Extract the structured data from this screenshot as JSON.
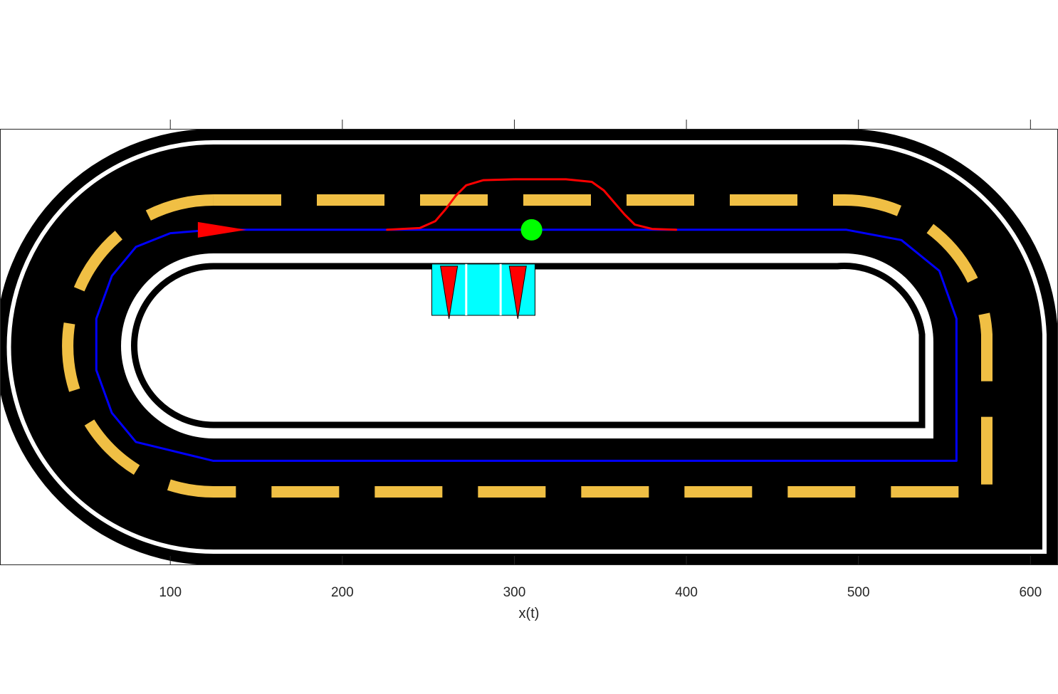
{
  "chart_data": {
    "type": "line",
    "title": "",
    "xlabel": "x(t)",
    "ylabel": "",
    "xlim": [
      1,
      616
    ],
    "ylim": [
      1,
      256
    ],
    "y_direction": "reverse",
    "grid": false,
    "xticks": [
      100,
      200,
      300,
      400,
      500,
      600
    ],
    "xtick_labels": [
      "100",
      "200",
      "300",
      "400",
      "500",
      "600"
    ],
    "background_image": "oval race track, black asphalt, white edge lines, yellow dashed centre line",
    "series": [
      {
        "role": "reference-path",
        "color": "#0000ff",
        "points": [
          [
            146,
            60
          ],
          [
            493,
            60
          ],
          [
            525,
            66
          ],
          [
            547,
            84
          ],
          [
            557,
            112
          ],
          [
            557,
            195
          ],
          [
            125,
            195
          ],
          [
            80,
            184
          ],
          [
            66,
            167
          ],
          [
            57,
            142
          ],
          [
            57,
            112
          ],
          [
            66,
            87
          ],
          [
            80,
            70
          ],
          [
            100,
            62
          ],
          [
            125,
            60
          ],
          [
            146,
            60
          ]
        ]
      },
      {
        "role": "lane-change-trajectory",
        "color": "#ff0000",
        "points": [
          [
            226,
            60
          ],
          [
            245,
            59
          ],
          [
            254,
            55
          ],
          [
            260,
            48
          ],
          [
            266,
            40
          ],
          [
            272,
            34
          ],
          [
            282,
            31
          ],
          [
            300,
            30.5
          ],
          [
            330,
            30.5
          ],
          [
            345,
            32
          ],
          [
            352,
            37
          ],
          [
            358,
            44
          ],
          [
            364,
            51
          ],
          [
            370,
            57
          ],
          [
            380,
            59.5
          ],
          [
            394,
            60
          ]
        ]
      }
    ],
    "markers": [
      {
        "role": "vehicle",
        "shape": "circle",
        "color": "#00ff00",
        "x": 310,
        "y": 60
      },
      {
        "role": "start-direction",
        "shape": "arrowhead",
        "color": "#ff0000",
        "x": 116,
        "y": 60,
        "direction": "right"
      }
    ],
    "obstacle": {
      "color": "#00ffff",
      "x_range": [
        252,
        312
      ],
      "y_range": [
        80,
        110
      ],
      "divider_x": [
        272,
        292
      ],
      "cones": [
        {
          "x": 262,
          "color": "#ff0000"
        },
        {
          "x": 302,
          "color": "#ff0000"
        }
      ]
    }
  }
}
